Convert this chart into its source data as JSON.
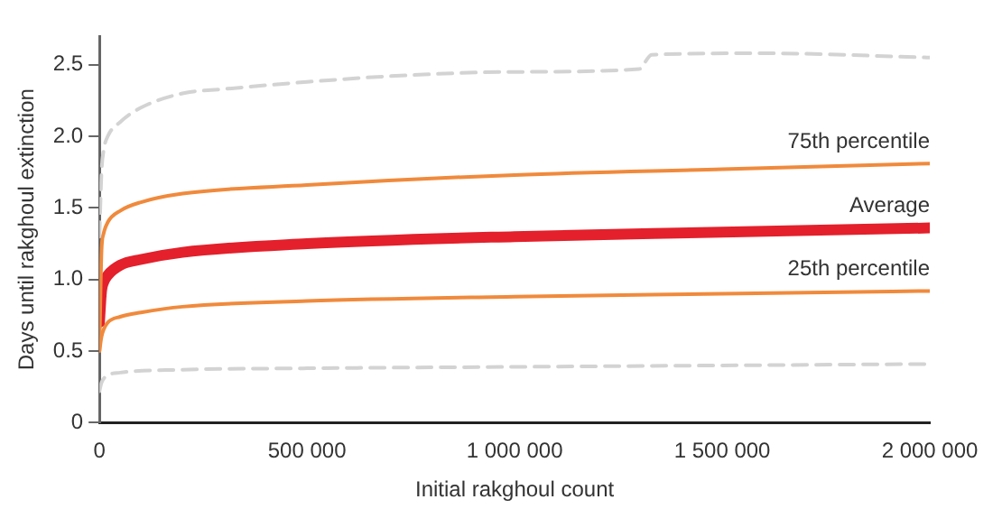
{
  "chart_data": {
    "type": "line",
    "xlabel": "Initial rakghoul count",
    "ylabel": "Days until rakghoul extinction",
    "xlim": [
      0,
      2000000
    ],
    "ylim": [
      0,
      2.7
    ],
    "xticks": [
      0,
      {
        "value": 500000,
        "label": "500 000"
      },
      {
        "value": 1000000,
        "label": "1 000 000"
      },
      {
        "value": 1500000,
        "label": "1 500 000"
      },
      {
        "value": 2000000,
        "label": "2 000 000"
      }
    ],
    "yticks": [
      0,
      0.5,
      {
        "value": 1,
        "label": "1.0"
      },
      1.5,
      {
        "value": 2,
        "label": "2.0"
      },
      2.5
    ],
    "grid": false,
    "legend": false,
    "marker": "none",
    "series": [
      {
        "color": "#d3d3d3",
        "line_style": "dashed",
        "x": [
          0,
          5000,
          10000,
          20000,
          50000,
          100000,
          200000,
          300000,
          500000,
          700000,
          1000000,
          1300000,
          1330000,
          1600000,
          2000000
        ],
        "values": [
          1.3,
          1.75,
          1.9,
          2.0,
          2.1,
          2.2,
          2.3,
          2.33,
          2.38,
          2.42,
          2.45,
          2.47,
          2.57,
          2.58,
          2.55
        ]
      },
      {
        "name": "75th percentile",
        "color": "#f08a3c",
        "x": [
          0,
          5000,
          10000,
          20000,
          50000,
          100000,
          200000,
          500000,
          1000000,
          1500000,
          2000000
        ],
        "values": [
          0.5,
          1.2,
          1.32,
          1.4,
          1.48,
          1.54,
          1.6,
          1.66,
          1.73,
          1.77,
          1.81
        ]
      },
      {
        "name": "Average",
        "color": "#e3202b",
        "x": [
          0,
          5000,
          10000,
          20000,
          50000,
          100000,
          200000,
          500000,
          1000000,
          1500000,
          2000000
        ],
        "values": [
          0.7,
          0.92,
          0.98,
          1.03,
          1.1,
          1.14,
          1.19,
          1.25,
          1.3,
          1.33,
          1.36
        ]
      },
      {
        "name": "25th percentile",
        "color": "#f08a3c",
        "x": [
          0,
          5000,
          10000,
          20000,
          50000,
          100000,
          200000,
          500000,
          1000000,
          1500000,
          2000000
        ],
        "values": [
          0.5,
          0.6,
          0.65,
          0.7,
          0.74,
          0.77,
          0.81,
          0.85,
          0.88,
          0.9,
          0.92
        ]
      },
      {
        "color": "#d3d3d3",
        "line_style": "dashed",
        "x": [
          0,
          5000,
          20000,
          50000,
          200000,
          500000,
          1000000,
          1500000,
          2000000
        ],
        "values": [
          0.22,
          0.28,
          0.33,
          0.35,
          0.37,
          0.38,
          0.39,
          0.4,
          0.41
        ]
      }
    ]
  }
}
